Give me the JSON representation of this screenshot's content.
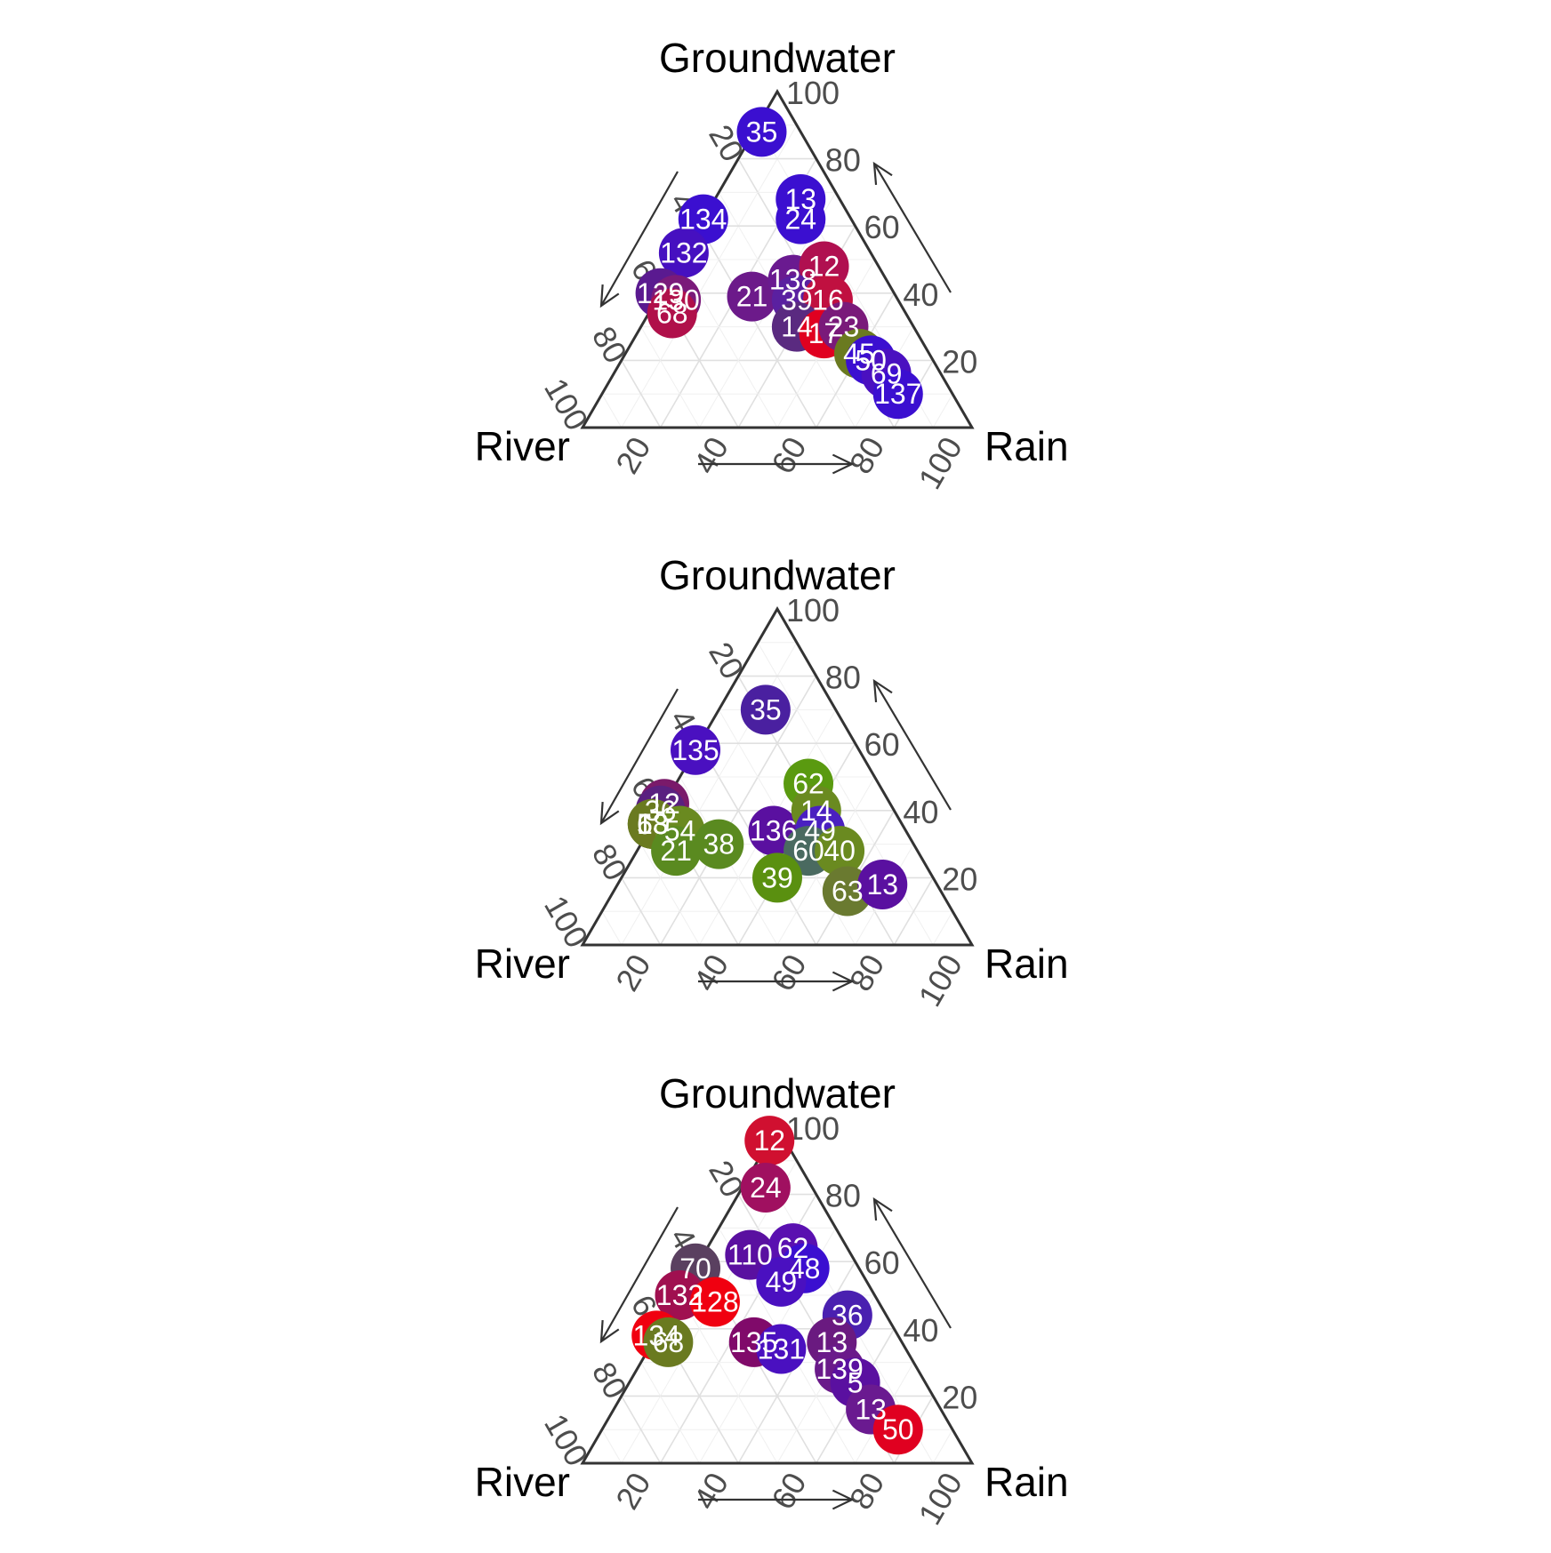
{
  "chart_data": [
    {
      "type": "scatter",
      "subtype": "ternary",
      "axes": {
        "top": "Groundwater",
        "left": "River",
        "right": "Rain"
      },
      "ticks": [
        "20",
        "40",
        "60",
        "80",
        "100"
      ],
      "grid": true,
      "points": [
        {
          "label": "35",
          "rain": 2,
          "gw": 88,
          "color": "#3b0fd0"
        },
        {
          "label": "134",
          "rain": 0,
          "gw": 62,
          "color": "#3b0fd0"
        },
        {
          "label": "132",
          "rain": 0,
          "gw": 52,
          "color": "#4610c0"
        },
        {
          "label": "129",
          "rain": 0,
          "gw": 40,
          "color": "#5a1a90"
        },
        {
          "label": "130",
          "rain": 5,
          "gw": 38,
          "color": "#7a1a7a"
        },
        {
          "label": "68",
          "rain": 6,
          "gw": 34,
          "color": "#b0104a"
        },
        {
          "label": "13",
          "rain": 22,
          "gw": 68,
          "color": "#3b0fd0"
        },
        {
          "label": "24",
          "rain": 25,
          "gw": 62,
          "color": "#3b0fd0"
        },
        {
          "label": "21",
          "rain": 24,
          "gw": 39,
          "color": "#6c1a8a"
        },
        {
          "label": "138",
          "rain": 32,
          "gw": 44,
          "color": "#6a1a90"
        },
        {
          "label": "12",
          "rain": 38,
          "gw": 48,
          "color": "#b01050"
        },
        {
          "label": "39",
          "rain": 36,
          "gw": 38,
          "color": "#5a20a0"
        },
        {
          "label": "16",
          "rain": 44,
          "gw": 38,
          "color": "#c01040"
        },
        {
          "label": "14",
          "rain": 40,
          "gw": 30,
          "color": "#5a2a80"
        },
        {
          "label": "17",
          "rain": 48,
          "gw": 28,
          "color": "#e00020"
        },
        {
          "label": "23",
          "rain": 52,
          "gw": 30,
          "color": "#7a1a7a"
        },
        {
          "label": "45",
          "rain": 60,
          "gw": 22,
          "color": "#6a7a20"
        },
        {
          "label": "50",
          "rain": 64,
          "gw": 20,
          "color": "#3b0fd0"
        },
        {
          "label": "69",
          "rain": 70,
          "gw": 16,
          "color": "#4a10c0"
        },
        {
          "label": "137",
          "rain": 76,
          "gw": 10,
          "color": "#3b0fd0"
        }
      ]
    },
    {
      "type": "scatter",
      "subtype": "ternary",
      "axes": {
        "top": "Groundwater",
        "left": "River",
        "right": "Rain"
      },
      "ticks": [
        "20",
        "40",
        "60",
        "80",
        "100"
      ],
      "grid": true,
      "points": [
        {
          "label": "35",
          "rain": 12,
          "gw": 70,
          "color": "#4a20a0"
        },
        {
          "label": "135",
          "rain": 0,
          "gw": 58,
          "color": "#4a10c0"
        },
        {
          "label": "12",
          "rain": 0,
          "gw": 42,
          "color": "#7a1a6a"
        },
        {
          "label": "36",
          "rain": 0,
          "gw": 40,
          "color": "#5a2080"
        },
        {
          "label": "63",
          "rain": 0,
          "gw": 36,
          "color": "#6a7a20"
        },
        {
          "label": "13",
          "rain": 0,
          "gw": 36,
          "color": "#6a7a30"
        },
        {
          "label": "58",
          "rain": 0,
          "gw": 36,
          "color": "#6a7a20"
        },
        {
          "label": "54",
          "rain": 8,
          "gw": 34,
          "color": "#6a8a20"
        },
        {
          "label": "21",
          "rain": 10,
          "gw": 28,
          "color": "#5a8a20"
        },
        {
          "label": "38",
          "rain": 20,
          "gw": 30,
          "color": "#5a8a20"
        },
        {
          "label": "136",
          "rain": 32,
          "gw": 34,
          "color": "#5a10a0"
        },
        {
          "label": "62",
          "rain": 34,
          "gw": 48,
          "color": "#5a9a10"
        },
        {
          "label": "14",
          "rain": 40,
          "gw": 40,
          "color": "#6a8a20"
        },
        {
          "label": "49",
          "rain": 44,
          "gw": 34,
          "color": "#4a20c0"
        },
        {
          "label": "60",
          "rain": 44,
          "gw": 28,
          "color": "#4a6a60"
        },
        {
          "label": "40",
          "rain": 52,
          "gw": 28,
          "color": "#6a8a20"
        },
        {
          "label": "39",
          "rain": 40,
          "gw": 20,
          "color": "#5a9010"
        },
        {
          "label": "63",
          "rain": 60,
          "gw": 16,
          "color": "#6a7a30"
        },
        {
          "label": "13",
          "rain": 68,
          "gw": 18,
          "color": "#5a10a0"
        }
      ]
    },
    {
      "type": "scatter",
      "subtype": "ternary",
      "axes": {
        "top": "Groundwater",
        "left": "River",
        "right": "Rain"
      },
      "ticks": [
        "20",
        "40",
        "60",
        "80",
        "100"
      ],
      "grid": true,
      "points": [
        {
          "label": "12",
          "rain": 0,
          "gw": 96,
          "color": "#d01030"
        },
        {
          "label": "24",
          "rain": 6,
          "gw": 82,
          "color": "#a01060"
        },
        {
          "label": "110",
          "rain": 12,
          "gw": 62,
          "color": "#5a10a0"
        },
        {
          "label": "62",
          "rain": 22,
          "gw": 64,
          "color": "#5a10b0"
        },
        {
          "label": "48",
          "rain": 28,
          "gw": 58,
          "color": "#3b0fd0"
        },
        {
          "label": "49",
          "rain": 24,
          "gw": 54,
          "color": "#4a10c0"
        },
        {
          "label": "70",
          "rain": 0,
          "gw": 58,
          "color": "#5a4060"
        },
        {
          "label": "132",
          "rain": 0,
          "gw": 50,
          "color": "#a01050"
        },
        {
          "label": "128",
          "rain": 10,
          "gw": 48,
          "color": "#f00010"
        },
        {
          "label": "134",
          "rain": 0,
          "gw": 38,
          "color": "#f00010"
        },
        {
          "label": "68",
          "rain": 4,
          "gw": 36,
          "color": "#6a7a20"
        },
        {
          "label": "135",
          "rain": 26,
          "gw": 36,
          "color": "#800a6a"
        },
        {
          "label": "131",
          "rain": 34,
          "gw": 34,
          "color": "#4a10c0"
        },
        {
          "label": "36",
          "rain": 46,
          "gw": 44,
          "color": "#4a20b0"
        },
        {
          "label": "13",
          "rain": 46,
          "gw": 36,
          "color": "#6a1a80"
        },
        {
          "label": "139",
          "rain": 52,
          "gw": 28,
          "color": "#6a1a8a"
        },
        {
          "label": "5",
          "rain": 58,
          "gw": 24,
          "color": "#5a10a0"
        },
        {
          "label": "13",
          "rain": 66,
          "gw": 16,
          "color": "#6a1a90"
        },
        {
          "label": "50",
          "rain": 76,
          "gw": 10,
          "color": "#e00020"
        }
      ]
    }
  ]
}
